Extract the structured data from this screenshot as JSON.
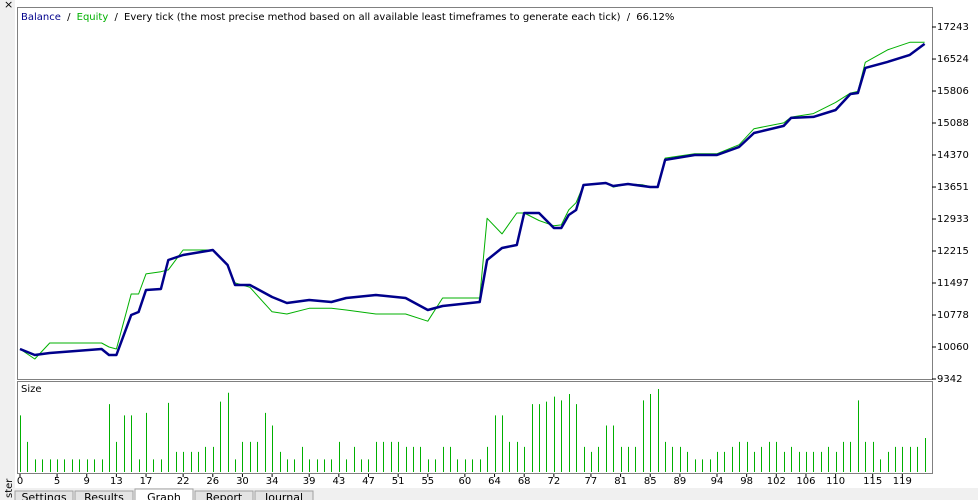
{
  "close_icon": "×",
  "side_label": "ster",
  "header": {
    "separator": "/",
    "description": "Every tick (the most precise method based on all available least timeframes to generate each tick)",
    "quality": "66.12%"
  },
  "tabs": [
    "Settings",
    "Results",
    "Graph",
    "Report",
    "Journal"
  ],
  "active_tab": "Graph",
  "chart_data": [
    {
      "type": "line",
      "x": [
        0,
        2,
        4,
        11,
        12,
        13,
        15,
        16,
        17,
        19,
        20,
        22,
        26,
        28,
        29,
        31,
        34,
        36,
        39,
        42,
        44,
        48,
        52,
        55,
        57,
        62,
        63,
        65,
        67,
        68,
        70,
        72,
        73,
        74,
        75,
        76,
        79,
        80,
        82,
        84,
        85,
        86,
        87,
        91,
        94,
        97,
        99,
        103,
        104,
        107,
        110,
        112,
        113,
        114,
        117,
        120,
        122
      ],
      "series": [
        {
          "name": "Balance",
          "color": "#00008b",
          "values": [
            10016,
            9881,
            9926,
            10016,
            9881,
            9881,
            10779,
            10846,
            11340,
            11362,
            12013,
            12126,
            12238,
            11901,
            11452,
            11452,
            11183,
            11048,
            11115,
            11070,
            11160,
            11228,
            11160,
            10891,
            10981,
            11070,
            12013,
            12283,
            12350,
            13069,
            13069,
            12732,
            12732,
            13024,
            13136,
            13697,
            13742,
            13675,
            13720,
            13675,
            13652,
            13652,
            14259,
            14371,
            14371,
            14551,
            14864,
            15022,
            15202,
            15224,
            15381,
            15740,
            15762,
            16324,
            16459,
            16616,
            16863
          ]
        },
        {
          "name": "Equity",
          "color": "#00b000",
          "values": [
            10016,
            9790,
            10150,
            10150,
            10060,
            10016,
            11250,
            11250,
            11700,
            11750,
            11790,
            12238,
            12238,
            11900,
            11500,
            11400,
            10850,
            10800,
            10930,
            10930,
            10890,
            10800,
            10800,
            10640,
            11160,
            11160,
            12950,
            12600,
            13069,
            13069,
            12900,
            12780,
            12800,
            13136,
            13300,
            13700,
            13742,
            13650,
            13720,
            13700,
            13660,
            13660,
            14300,
            14400,
            14400,
            14600,
            14960,
            15090,
            15220,
            15300,
            15550,
            15760,
            15800,
            16450,
            16730,
            16900,
            16900
          ]
        }
      ],
      "xlim": [
        0,
        123
      ],
      "ylim": [
        9342,
        17243
      ],
      "yticks": [
        9342,
        10060,
        10778,
        11497,
        12215,
        12933,
        13651,
        14370,
        15088,
        15806,
        16524,
        17243
      ]
    },
    {
      "type": "bar",
      "title": "Size",
      "color": "#00b000",
      "x": [
        0,
        1,
        2,
        3,
        4,
        5,
        6,
        7,
        8,
        9,
        10,
        11,
        12,
        13,
        14,
        15,
        16,
        17,
        18,
        19,
        20,
        21,
        22,
        23,
        24,
        25,
        26,
        27,
        28,
        29,
        30,
        31,
        32,
        33,
        34,
        35,
        36,
        37,
        38,
        39,
        40,
        41,
        42,
        43,
        44,
        45,
        46,
        47,
        48,
        49,
        50,
        51,
        52,
        53,
        54,
        55,
        56,
        57,
        58,
        59,
        60,
        61,
        62,
        63,
        64,
        65,
        66,
        67,
        68,
        69,
        70,
        71,
        72,
        73,
        74,
        75,
        76,
        77,
        78,
        79,
        80,
        81,
        82,
        83,
        84,
        85,
        86,
        87,
        88,
        89,
        90,
        91,
        92,
        93,
        94,
        95,
        96,
        97,
        98,
        99,
        100,
        101,
        102,
        103,
        104,
        105,
        106,
        107,
        108,
        109,
        110,
        111,
        112,
        113,
        114,
        115,
        116,
        117,
        118,
        119,
        120,
        121,
        122
      ],
      "values": [
        0.45,
        0.24,
        0.1,
        0.1,
        0.1,
        0.1,
        0.1,
        0.1,
        0.1,
        0.1,
        0.1,
        0.1,
        0.54,
        0.24,
        0.45,
        0.45,
        0.1,
        0.47,
        0.1,
        0.1,
        0.55,
        0.16,
        0.16,
        0.16,
        0.16,
        0.2,
        0.2,
        0.56,
        0.63,
        0.1,
        0.24,
        0.24,
        0.24,
        0.47,
        0.37,
        0.16,
        0.1,
        0.1,
        0.2,
        0.1,
        0.1,
        0.1,
        0.1,
        0.24,
        0.1,
        0.2,
        0.1,
        0.1,
        0.24,
        0.24,
        0.24,
        0.24,
        0.2,
        0.2,
        0.2,
        0.1,
        0.1,
        0.2,
        0.2,
        0.1,
        0.1,
        0.1,
        0.1,
        0.2,
        0.45,
        0.45,
        0.24,
        0.24,
        0.2,
        0.54,
        0.54,
        0.56,
        0.6,
        0.57,
        0.62,
        0.54,
        0.2,
        0.16,
        0.2,
        0.37,
        0.37,
        0.2,
        0.2,
        0.2,
        0.57,
        0.62,
        0.66,
        0.24,
        0.2,
        0.2,
        0.16,
        0.1,
        0.1,
        0.1,
        0.16,
        0.16,
        0.2,
        0.24,
        0.24,
        0.16,
        0.2,
        0.24,
        0.24,
        0.16,
        0.2,
        0.16,
        0.16,
        0.16,
        0.16,
        0.2,
        0.16,
        0.24,
        0.24,
        0.57,
        0.24,
        0.24,
        0.1,
        0.16,
        0.2,
        0.2,
        0.2,
        0.2,
        0.27
      ],
      "xlim": [
        0,
        123
      ],
      "ylim": [
        0,
        0.7
      ],
      "xticks": [
        0,
        5,
        9,
        13,
        17,
        22,
        26,
        30,
        34,
        39,
        43,
        47,
        51,
        55,
        60,
        64,
        68,
        72,
        77,
        81,
        85,
        89,
        94,
        98,
        102,
        106,
        110,
        115,
        119
      ]
    }
  ]
}
